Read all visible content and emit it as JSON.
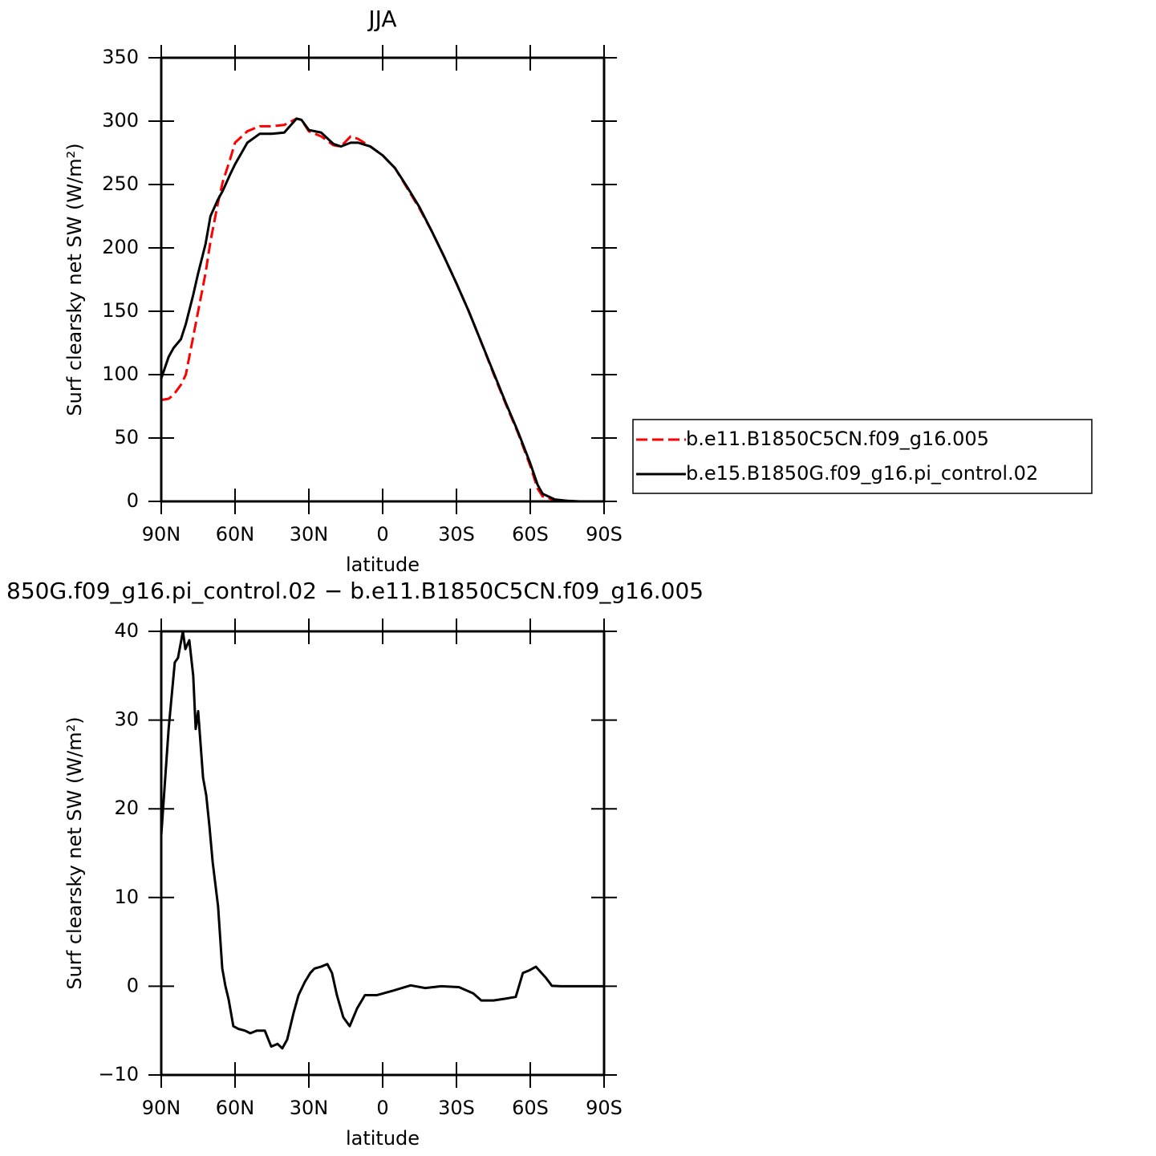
{
  "chart_data": [
    {
      "type": "line",
      "title": "JJA",
      "ylabel": "Surf clearsky net SW (W/m²)",
      "xlabel": "latitude",
      "x": [
        90,
        87,
        85,
        82,
        80,
        77,
        75,
        72,
        70,
        67,
        65,
        62,
        60,
        55,
        50,
        45,
        40,
        35,
        33,
        30,
        25,
        20,
        17,
        13,
        10,
        5,
        0,
        -5,
        -10,
        -15,
        -20,
        -25,
        -30,
        -35,
        -40,
        -45,
        -50,
        -55,
        -60,
        -63,
        -65,
        -70,
        -75,
        -80,
        -90
      ],
      "xlim": [
        90,
        -90
      ],
      "xticks": [
        {
          "value": 90,
          "label": "90N"
        },
        {
          "value": 60,
          "label": "60N"
        },
        {
          "value": 30,
          "label": "30N"
        },
        0,
        {
          "value": -30,
          "label": "30S"
        },
        {
          "value": -60,
          "label": "60S"
        },
        {
          "value": -90,
          "label": "90S"
        }
      ],
      "ylim": [
        0,
        350
      ],
      "yticks": [
        0,
        50,
        100,
        150,
        200,
        250,
        300,
        350
      ],
      "legend": "right",
      "series": [
        {
          "name": "b.e11.B1850C5CN.f09_g16.005",
          "color": "#ff0000",
          "dashed": true,
          "values": [
            80,
            81,
            84,
            92,
            100,
            130,
            150,
            180,
            205,
            235,
            252,
            270,
            283,
            292,
            296,
            296,
            297,
            302,
            301,
            292,
            288,
            281,
            280,
            288,
            286,
            280,
            273,
            263,
            247,
            231,
            213,
            193,
            172,
            150,
            126,
            101,
            77,
            54,
            28,
            10,
            4,
            1,
            0.3,
            0,
            0
          ]
        },
        {
          "name": "b.e15.B1850G.f09_g16.pi_control.02",
          "color": "#000000",
          "dashed": false,
          "values": [
            97,
            114,
            121,
            128,
            140,
            163,
            180,
            203,
            225,
            238,
            245,
            258,
            266,
            283,
            290,
            290,
            291,
            302,
            301,
            293,
            291,
            282,
            280,
            283,
            283,
            280,
            273,
            263,
            248,
            232,
            213,
            193,
            172,
            150,
            126,
            102,
            78,
            55,
            30,
            13,
            6,
            1.5,
            0.5,
            0,
            0
          ]
        }
      ]
    },
    {
      "type": "line",
      "title": "850G.f09_g16.pi_control.02 − b.e11.B1850C5CN.f09_g16.005",
      "ylabel": "Surf clearsky net SW (W/m²)",
      "xlabel": "latitude",
      "x": [
        90,
        87,
        84.5,
        83.2,
        81.2,
        80.2,
        78.6,
        77,
        76,
        75,
        73,
        71.7,
        70.4,
        69.1,
        66.9,
        65.2,
        63.9,
        62.6,
        60.7,
        58.7,
        56,
        53.8,
        51.2,
        47.9,
        45.3,
        42.7,
        40.8,
        38.8,
        36.2,
        34.2,
        31.6,
        29.4,
        27.7,
        25.1,
        22.5,
        20.6,
        18.6,
        16,
        13.4,
        10.4,
        7.2,
        2.3,
        -4.2,
        -11.4,
        -17.3,
        -23.8,
        -31,
        -36.8,
        -40.1,
        -45,
        -49.9,
        -54.1,
        -57,
        -59.7,
        -62.3,
        -66.2,
        -68.8,
        -72.7,
        -90
      ],
      "xlim": [
        90,
        -90
      ],
      "xticks": [
        {
          "value": 90,
          "label": "90N"
        },
        {
          "value": 60,
          "label": "60N"
        },
        {
          "value": 30,
          "label": "30N"
        },
        0,
        {
          "value": -30,
          "label": "30S"
        },
        {
          "value": -60,
          "label": "60S"
        },
        {
          "value": -90,
          "label": "90S"
        }
      ],
      "ylim": [
        -10,
        40
      ],
      "yticks": [
        {
          "value": -10,
          "label": "−10"
        },
        0,
        10,
        20,
        30,
        40
      ],
      "series": [
        {
          "color": "#000000",
          "dashed": false,
          "values": [
            17,
            29,
            36.5,
            37,
            40,
            38,
            39,
            35,
            29,
            31,
            23.5,
            21.5,
            18,
            14,
            9,
            2,
            0,
            -1.5,
            -4.5,
            -4.8,
            -5,
            -5.3,
            -5,
            -5,
            -6.8,
            -6.5,
            -7,
            -6,
            -3,
            -1,
            0.5,
            1.5,
            2,
            2.2,
            2.5,
            1.5,
            -1,
            -3.5,
            -4.5,
            -2.5,
            -1,
            -1,
            -0.5,
            0.1,
            -0.2,
            0,
            -0.1,
            -0.8,
            -1.6,
            -1.6,
            -1.4,
            -1.2,
            1.5,
            1.8,
            2.2,
            1,
            0.05,
            0,
            0
          ]
        }
      ]
    }
  ]
}
